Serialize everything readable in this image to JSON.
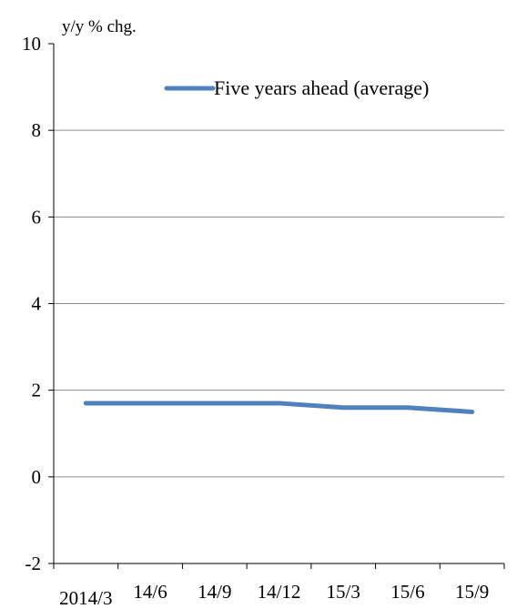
{
  "chart_data": {
    "type": "line",
    "ylabel": "y/y % chg.",
    "ylim": [
      -2,
      10
    ],
    "yticks": [
      -2,
      0,
      2,
      4,
      6,
      8,
      10
    ],
    "xticks": [
      "2014/3",
      "14/6",
      "14/9",
      "14/12",
      "15/3",
      "15/6",
      "15/9"
    ],
    "grid": true,
    "legend_position": "top-right",
    "series": [
      {
        "name": "Five years ahead (average)",
        "color": "#4f81bd",
        "x": [
          "2014/3",
          "14/6",
          "14/9",
          "14/12",
          "15/3",
          "15/6",
          "15/9"
        ],
        "values": [
          1.7,
          1.7,
          1.7,
          1.7,
          1.6,
          1.6,
          1.5
        ]
      }
    ]
  }
}
